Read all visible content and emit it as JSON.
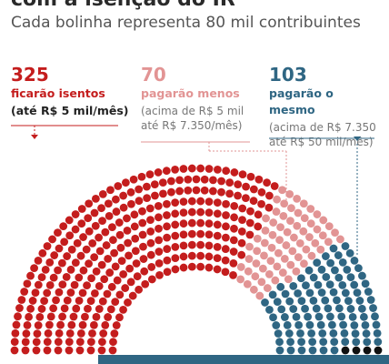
{
  "header": {
    "title_partial": "com a isenção do IR",
    "subtitle": "Cada bolinha representa 80 mil contribuintes"
  },
  "groups": [
    {
      "count": "325",
      "label": "ficarão isentos",
      "desc": "(até R$ 5 mil/mês)",
      "color": "#c41d1d"
    },
    {
      "count": "70",
      "label": "pagarão menos",
      "desc": "(acima de R$ 5 mil até R$ 7.350/mês)",
      "color": "#e29494"
    },
    {
      "count": "103",
      "label": "pagarão o mesmo",
      "desc": "(acima de R$ 7.350 até R$ 50 mil/mês)",
      "color": "#2f6683"
    }
  ],
  "chart_data": {
    "type": "parliament",
    "unit": "80 mil contribuintes",
    "series": [
      {
        "name": "ficarão isentos",
        "value": 325,
        "color": "#c41d1d"
      },
      {
        "name": "pagarão menos",
        "value": 70,
        "color": "#e29494"
      },
      {
        "name": "pagarão o mesmo",
        "value": 103,
        "color": "#2f6683"
      },
      {
        "value": 4,
        "color": "#111111"
      }
    ]
  }
}
